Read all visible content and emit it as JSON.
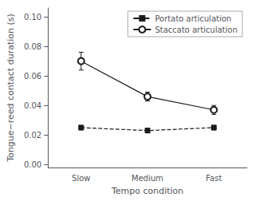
{
  "chart_data": {
    "type": "line",
    "categories": [
      "Slow",
      "Medium",
      "Fast"
    ],
    "xlabel": "Tempo condition",
    "ylabel": "Tongue−reed contact duration (s)",
    "series": [
      {
        "name": "Portato articulation",
        "color": "#1a1a1a",
        "marker": "square",
        "line_style": "dashed",
        "values": [
          0.025,
          0.023,
          0.025
        ],
        "error_lo": [
          0.0015,
          0.0015,
          0.0015
        ],
        "error_hi": [
          0.0015,
          0.0015,
          0.0015
        ]
      },
      {
        "name": "Staccato articulation",
        "color": "#1a1a1a",
        "marker": "open_circle",
        "line_style": "solid",
        "values": [
          0.07,
          0.046,
          0.037
        ],
        "error_lo": [
          0.006,
          0.003,
          0.003
        ],
        "error_hi": [
          0.006,
          0.003,
          0.003
        ]
      }
    ],
    "ylim": [
      -0.002,
      0.106
    ],
    "yticks": [
      {
        "value": 0.0,
        "label": "0.00"
      },
      0.02,
      0.04,
      0.06,
      0.08,
      {
        "value": 0.1,
        "label": "0.10"
      }
    ],
    "grid": false,
    "legend": "upper right"
  }
}
